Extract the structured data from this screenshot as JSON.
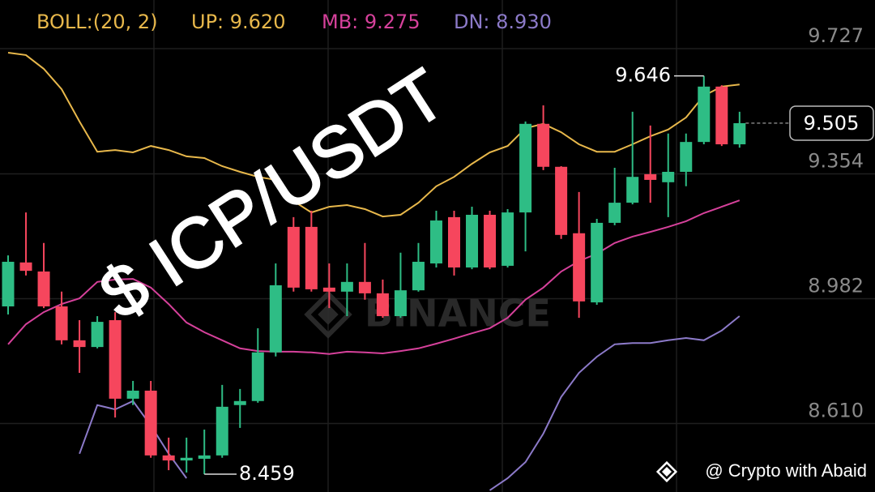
{
  "chart_data": {
    "type": "candlestick",
    "title": "$ ICP/USDT",
    "indicator": "BOLL:(20, 2)",
    "watermark": "BINANCE",
    "credit": "@ Crypto with Abaid",
    "high_label": 9.646,
    "low_label": 8.459,
    "last_price": 9.505,
    "up_color": "#2ebd85",
    "down_color": "#f6465d",
    "grid": true,
    "ylim": [
      8.406,
      9.872
    ],
    "yticks": [
      9.727,
      9.354,
      8.982,
      {
        "value": 8.61,
        "label": "8.610"
      }
    ],
    "open": [
      8.959,
      9.09,
      9.063,
      8.959,
      8.858,
      8.838,
      8.918,
      8.684,
      8.708,
      8.515,
      8.5,
      8.505,
      8.515,
      8.665,
      8.677,
      8.822,
      9.196,
      9.196,
      9.015,
      9.003,
      9.032,
      8.998,
      8.93,
      9.007,
      9.087,
      9.225,
      9.075,
      9.232,
      9.08,
      9.239,
      9.503,
      9.375,
      9.177,
      8.971,
      9.208,
      9.268,
      9.353,
      9.329,
      9.36,
      9.449,
      9.614,
      9.442
    ],
    "high": [
      9.111,
      9.239,
      9.148,
      9.003,
      8.918,
      8.93,
      8.942,
      8.737,
      8.737,
      8.568,
      8.568,
      8.592,
      8.725,
      8.713,
      8.894,
      9.087,
      9.225,
      9.244,
      9.087,
      9.087,
      9.148,
      9.039,
      9.119,
      9.148,
      9.244,
      9.244,
      9.256,
      9.244,
      9.249,
      9.51,
      9.558,
      9.377,
      9.3,
      9.22,
      9.372,
      9.539,
      9.498,
      9.474,
      9.474,
      9.646,
      9.618,
      9.539
    ],
    "low": [
      8.935,
      9.051,
      8.954,
      8.846,
      8.761,
      8.834,
      8.628,
      8.665,
      8.508,
      8.471,
      8.464,
      8.459,
      8.508,
      8.597,
      8.672,
      8.81,
      9.003,
      9.003,
      8.954,
      8.93,
      8.979,
      8.925,
      8.925,
      9.003,
      9.075,
      9.051,
      9.07,
      9.07,
      9.075,
      9.123,
      9.365,
      9.16,
      8.925,
      8.964,
      9.201,
      9.263,
      9.268,
      9.225,
      9.317,
      9.442,
      9.437,
      9.432
    ],
    "close": [
      9.092,
      9.065,
      8.959,
      8.858,
      8.838,
      8.913,
      8.684,
      8.708,
      8.515,
      8.5,
      8.508,
      8.515,
      8.66,
      8.677,
      8.822,
      9.022,
      9.015,
      9.01,
      9.003,
      9.032,
      8.998,
      8.93,
      9.007,
      9.092,
      9.215,
      9.075,
      9.232,
      9.075,
      9.239,
      9.503,
      9.375,
      9.172,
      8.974,
      9.208,
      9.268,
      9.345,
      9.336,
      9.36,
      9.449,
      9.614,
      9.442,
      9.505
    ],
    "series": [
      {
        "name": "UP: 9.620",
        "color": "#e8b84b",
        "values": [
          9.715,
          9.708,
          9.667,
          9.606,
          9.51,
          9.42,
          9.425,
          9.418,
          9.437,
          9.425,
          9.406,
          9.401,
          9.377,
          9.36,
          9.345,
          9.336,
          9.273,
          9.239,
          9.256,
          9.261,
          9.249,
          9.227,
          9.232,
          9.268,
          9.317,
          9.345,
          9.384,
          9.418,
          9.437,
          9.49,
          9.503,
          9.478,
          9.442,
          9.42,
          9.42,
          9.442,
          9.466,
          9.486,
          9.522,
          9.587,
          9.614,
          9.62
        ]
      },
      {
        "name": "MB: 9.275",
        "color": "#d6419b",
        "values": [
          8.846,
          8.906,
          8.942,
          8.966,
          8.983,
          9.032,
          9.039,
          9.041,
          9.015,
          8.966,
          8.911,
          8.882,
          8.858,
          8.834,
          8.826,
          8.824,
          8.824,
          8.822,
          8.817,
          8.824,
          8.822,
          8.819,
          8.826,
          8.834,
          8.848,
          8.863,
          8.879,
          8.894,
          8.925,
          8.979,
          9.015,
          9.063,
          9.094,
          9.116,
          9.148,
          9.167,
          9.181,
          9.196,
          9.213,
          9.237,
          9.256,
          9.275
        ]
      },
      {
        "name": "DN: 8.930",
        "color": "#8c7ac9",
        "values": [
          null,
          null,
          null,
          null,
          8.52,
          8.665,
          8.652,
          8.677,
          8.604,
          8.52,
          8.447,
          null,
          null,
          null,
          null,
          null,
          null,
          null,
          null,
          null,
          null,
          null,
          null,
          null,
          null,
          null,
          null,
          8.411,
          8.447,
          8.495,
          8.58,
          8.689,
          8.761,
          8.809,
          8.846,
          8.85,
          8.85,
          8.858,
          8.865,
          8.858,
          8.887,
          8.93
        ]
      }
    ]
  }
}
